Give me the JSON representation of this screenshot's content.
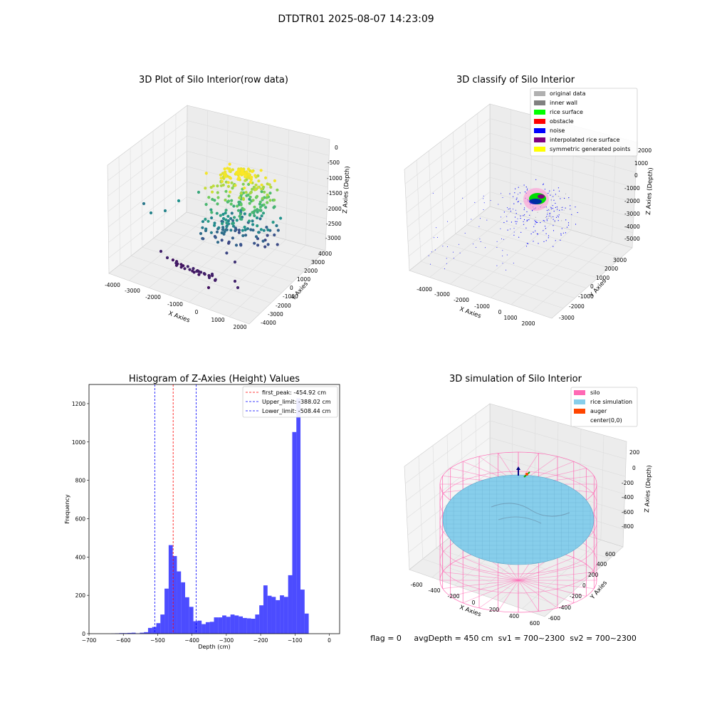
{
  "figure": {
    "suptitle": "DTDTR01 2025-08-07 14:23:09",
    "status_line": "flag = 0     avgDepth = 450 cm  sv1 = 700~2300  sv2 = 700~2300"
  },
  "chart_data": [
    {
      "type": "scatter",
      "subtype": "3d",
      "title": "3D Plot of Silo Interior(row data)",
      "xlabel": "X Axies",
      "ylabel": "Y Axies",
      "zlabel": "Z Axies (Depth)",
      "x_ticks": [
        "-4000",
        "-3000",
        "-2000",
        "-1000",
        "0",
        "1000",
        "2000"
      ],
      "y_ticks": [
        "-4000",
        "-3000",
        "-2000",
        "-1000",
        "0",
        "1000",
        "2000",
        "3000",
        "4000"
      ],
      "z_ticks": [
        "-3000",
        "-2500",
        "-2000",
        "-1500",
        "-1000",
        "-500",
        "0"
      ],
      "colormap": "viridis (by Z)"
    },
    {
      "type": "scatter",
      "subtype": "3d",
      "title": "3D classify of Silo Interior",
      "xlabel": "X Axies",
      "ylabel": "Y Axies",
      "zlabel": "Z Axies (Depth)",
      "x_ticks": [
        "-4000",
        "-3000",
        "-2000",
        "-1000",
        "0",
        "1000",
        "2000"
      ],
      "y_ticks": [
        "-3000",
        "-2000",
        "-1000",
        "0",
        "1000",
        "2000",
        "3000"
      ],
      "z_ticks": [
        "-5000",
        "-4000",
        "-3000",
        "-2000",
        "-1000",
        "0",
        "1000",
        "2000"
      ],
      "legend_position": "top-right",
      "legend": [
        {
          "label": "original data",
          "color": "#b0b0b0"
        },
        {
          "label": "inner wall",
          "color": "#808080"
        },
        {
          "label": "rice surface",
          "color": "#00ff00"
        },
        {
          "label": "obstacle",
          "color": "#ff0000"
        },
        {
          "label": "noise",
          "color": "#0000ff"
        },
        {
          "label": "interpolated rice surface",
          "color": "#800080"
        },
        {
          "label": "symmetric generated points",
          "color": "#ffff00"
        }
      ]
    },
    {
      "type": "bar",
      "subtype": "histogram",
      "title": "Histogram of Z-Axies (Height) Values",
      "xlabel": "Depth (cm)",
      "ylabel": "Frequency",
      "xlim": [
        -700,
        30
      ],
      "ylim": [
        0,
        1300
      ],
      "x_ticks": [
        -700,
        -600,
        -500,
        -400,
        -300,
        -200,
        -100,
        0
      ],
      "y_ticks": [
        0,
        200,
        400,
        600,
        800,
        1000,
        1200
      ],
      "bar_color": "#0000ff",
      "bin_width": 12,
      "bins": [
        {
          "x0": -636,
          "v": 1
        },
        {
          "x0": -624,
          "v": 2
        },
        {
          "x0": -612,
          "v": 3
        },
        {
          "x0": -600,
          "v": 3
        },
        {
          "x0": -588,
          "v": 4
        },
        {
          "x0": -576,
          "v": 5
        },
        {
          "x0": -564,
          "v": 2
        },
        {
          "x0": -552,
          "v": 5
        },
        {
          "x0": -540,
          "v": 8
        },
        {
          "x0": -528,
          "v": 30
        },
        {
          "x0": -516,
          "v": 35
        },
        {
          "x0": -504,
          "v": 55
        },
        {
          "x0": -492,
          "v": 100
        },
        {
          "x0": -480,
          "v": 235
        },
        {
          "x0": -468,
          "v": 462
        },
        {
          "x0": -456,
          "v": 405
        },
        {
          "x0": -444,
          "v": 325
        },
        {
          "x0": -432,
          "v": 268
        },
        {
          "x0": -420,
          "v": 190
        },
        {
          "x0": -408,
          "v": 140
        },
        {
          "x0": -396,
          "v": 65
        },
        {
          "x0": -384,
          "v": 68
        },
        {
          "x0": -372,
          "v": 50
        },
        {
          "x0": -360,
          "v": 60
        },
        {
          "x0": -348,
          "v": 62
        },
        {
          "x0": -336,
          "v": 85
        },
        {
          "x0": -324,
          "v": 85
        },
        {
          "x0": -312,
          "v": 95
        },
        {
          "x0": -300,
          "v": 88
        },
        {
          "x0": -288,
          "v": 100
        },
        {
          "x0": -276,
          "v": 95
        },
        {
          "x0": -264,
          "v": 90
        },
        {
          "x0": -252,
          "v": 82
        },
        {
          "x0": -240,
          "v": 80
        },
        {
          "x0": -228,
          "v": 78
        },
        {
          "x0": -216,
          "v": 100
        },
        {
          "x0": -204,
          "v": 148
        },
        {
          "x0": -192,
          "v": 252
        },
        {
          "x0": -180,
          "v": 198
        },
        {
          "x0": -168,
          "v": 192
        },
        {
          "x0": -156,
          "v": 175
        },
        {
          "x0": -144,
          "v": 200
        },
        {
          "x0": -132,
          "v": 192
        },
        {
          "x0": -120,
          "v": 305
        },
        {
          "x0": -108,
          "v": 1052
        },
        {
          "x0": -96,
          "v": 1228
        },
        {
          "x0": -84,
          "v": 230
        },
        {
          "x0": -72,
          "v": 105
        }
      ],
      "vlines": [
        {
          "label": "first_peak: -454.92 cm",
          "x": -454.92,
          "color": "#ff0000"
        },
        {
          "label": "Upper_limit: -388.02 cm",
          "x": -388.02,
          "color": "#0000ff"
        },
        {
          "label": "Lower_limit: -508.44 cm",
          "x": -508.44,
          "color": "#0000ff"
        }
      ],
      "legend_position": "top-right"
    },
    {
      "type": "area",
      "subtype": "3d-surface",
      "title": "3D simulation of Silo Interior",
      "xlabel": "X Axies",
      "ylabel": "Y Axies",
      "zlabel": "Z Axies (Depth)",
      "x_ticks": [
        "-600",
        "-400",
        "-200",
        "0",
        "200",
        "400",
        "600"
      ],
      "y_ticks": [
        "-600",
        "-400",
        "-200",
        "0",
        "200",
        "400",
        "600"
      ],
      "z_ticks": [
        "-800",
        "-600",
        "-400",
        "-200",
        "0",
        "200"
      ],
      "legend_position": "top-right",
      "legend": [
        {
          "label": "silo",
          "color": "#ff69b4"
        },
        {
          "label": "rice simulation",
          "color": "#87ceeb"
        },
        {
          "label": "auger",
          "color": "#ff4500"
        },
        {
          "label": "center(0,0)",
          "color": ""
        }
      ]
    }
  ]
}
